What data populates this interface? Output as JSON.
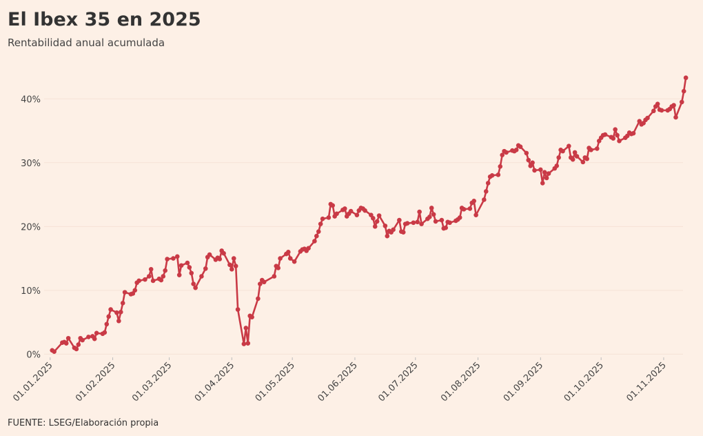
{
  "chart_data": {
    "type": "line",
    "title": "El Ibex 35 en 2025",
    "subtitle": "Rentabilidad anual acumulada",
    "source": "FUENTE: LSEG/Elaboración propia",
    "xlim": [
      "2024-12-29",
      "2025-11-14"
    ],
    "xticks": [
      {
        "value": "2025-01-01",
        "label": "01.01.2025"
      },
      {
        "value": "2025-02-01",
        "label": "01.02.2025"
      },
      {
        "value": "2025-03-01",
        "label": "01.03.2025"
      },
      {
        "value": "2025-04-01",
        "label": "01.04.2025"
      },
      {
        "value": "2025-05-01",
        "label": "01.05.2025"
      },
      {
        "value": "2025-06-01",
        "label": "01.06.2025"
      },
      {
        "value": "2025-07-01",
        "label": "01.07.2025"
      },
      {
        "value": "2025-08-01",
        "label": "01.08.2025"
      },
      {
        "value": "2025-09-01",
        "label": "01.09.2025"
      },
      {
        "value": "2025-10-01",
        "label": "01.10.2025"
      },
      {
        "value": "2025-11-01",
        "label": "01.11.2025"
      }
    ],
    "ylim": [
      -0.5,
      45
    ],
    "yticks": [
      {
        "value": 0,
        "label": "0%"
      },
      {
        "value": 10,
        "label": "10%"
      },
      {
        "value": 20,
        "label": "20%"
      },
      {
        "value": 30,
        "label": "30%"
      },
      {
        "value": 40,
        "label": "40%"
      }
    ],
    "grid": true,
    "x": [
      "2025-01-02",
      "2025-01-03",
      "2025-01-07",
      "2025-01-08",
      "2025-01-09",
      "2025-01-10",
      "2025-01-13",
      "2025-01-14",
      "2025-01-15",
      "2025-01-16",
      "2025-01-17",
      "2025-01-20",
      "2025-01-22",
      "2025-01-23",
      "2025-01-24",
      "2025-01-27",
      "2025-01-28",
      "2025-01-29",
      "2025-01-30",
      "2025-01-31",
      "2025-02-03",
      "2025-02-04",
      "2025-02-05",
      "2025-02-06",
      "2025-02-07",
      "2025-02-10",
      "2025-02-11",
      "2025-02-12",
      "2025-02-13",
      "2025-02-14",
      "2025-02-17",
      "2025-02-19",
      "2025-02-20",
      "2025-02-21",
      "2025-02-24",
      "2025-02-25",
      "2025-02-26",
      "2025-02-27",
      "2025-02-28",
      "2025-03-03",
      "2025-03-05",
      "2025-03-06",
      "2025-03-07",
      "2025-03-10",
      "2025-03-11",
      "2025-03-12",
      "2025-03-13",
      "2025-03-14",
      "2025-03-17",
      "2025-03-19",
      "2025-03-20",
      "2025-03-21",
      "2025-03-24",
      "2025-03-25",
      "2025-03-26",
      "2025-03-27",
      "2025-03-28",
      "2025-03-31",
      "2025-04-01",
      "2025-04-02",
      "2025-04-03",
      "2025-04-04",
      "2025-04-07",
      "2025-04-08",
      "2025-04-09",
      "2025-04-10",
      "2025-04-11",
      "2025-04-14",
      "2025-04-15",
      "2025-04-16",
      "2025-04-17",
      "2025-04-22",
      "2025-04-23",
      "2025-04-24",
      "2025-04-25",
      "2025-04-28",
      "2025-04-29",
      "2025-04-30",
      "2025-05-02",
      "2025-05-05",
      "2025-05-06",
      "2025-05-07",
      "2025-05-08",
      "2025-05-09",
      "2025-05-12",
      "2025-05-13",
      "2025-05-14",
      "2025-05-15",
      "2025-05-16",
      "2025-05-19",
      "2025-05-20",
      "2025-05-21",
      "2025-05-22",
      "2025-05-23",
      "2025-05-26",
      "2025-05-27",
      "2025-05-28",
      "2025-05-29",
      "2025-05-30",
      "2025-06-02",
      "2025-06-03",
      "2025-06-04",
      "2025-06-05",
      "2025-06-06",
      "2025-06-09",
      "2025-06-10",
      "2025-06-11",
      "2025-06-12",
      "2025-06-13",
      "2025-06-16",
      "2025-06-17",
      "2025-06-18",
      "2025-06-19",
      "2025-06-20",
      "2025-06-23",
      "2025-06-24",
      "2025-06-25",
      "2025-06-26",
      "2025-06-27",
      "2025-06-30",
      "2025-07-02",
      "2025-07-03",
      "2025-07-04",
      "2025-07-07",
      "2025-07-08",
      "2025-07-09",
      "2025-07-10",
      "2025-07-11",
      "2025-07-14",
      "2025-07-15",
      "2025-07-16",
      "2025-07-17",
      "2025-07-18",
      "2025-07-21",
      "2025-07-22",
      "2025-07-23",
      "2025-07-24",
      "2025-07-25",
      "2025-07-28",
      "2025-07-29",
      "2025-07-30",
      "2025-07-31",
      "2025-08-04",
      "2025-08-05",
      "2025-08-06",
      "2025-08-07",
      "2025-08-08",
      "2025-08-11",
      "2025-08-12",
      "2025-08-13",
      "2025-08-14",
      "2025-08-15",
      "2025-08-18",
      "2025-08-19",
      "2025-08-20",
      "2025-08-21",
      "2025-08-22",
      "2025-08-25",
      "2025-08-26",
      "2025-08-27",
      "2025-08-28",
      "2025-08-29",
      "2025-09-01",
      "2025-09-02",
      "2025-09-03",
      "2025-09-04",
      "2025-09-05",
      "2025-09-08",
      "2025-09-09",
      "2025-09-10",
      "2025-09-11",
      "2025-09-12",
      "2025-09-15",
      "2025-09-16",
      "2025-09-17",
      "2025-09-18",
      "2025-09-19",
      "2025-09-22",
      "2025-09-23",
      "2025-09-24",
      "2025-09-25",
      "2025-09-26",
      "2025-09-29",
      "2025-09-30",
      "2025-10-01",
      "2025-10-02",
      "2025-10-03",
      "2025-10-06",
      "2025-10-07",
      "2025-10-08",
      "2025-10-09",
      "2025-10-10",
      "2025-10-13",
      "2025-10-14",
      "2025-10-15",
      "2025-10-16",
      "2025-10-17",
      "2025-10-20",
      "2025-10-21",
      "2025-10-22",
      "2025-10-23",
      "2025-10-24",
      "2025-10-27",
      "2025-10-28",
      "2025-10-29",
      "2025-10-30",
      "2025-10-31",
      "2025-11-03",
      "2025-11-04",
      "2025-11-05",
      "2025-11-06",
      "2025-11-07",
      "2025-11-10",
      "2025-11-11",
      "2025-11-12"
    ],
    "series": [
      {
        "color": "#c93a46",
        "values": [
          0.6,
          0.4,
          1.8,
          1.9,
          1.7,
          2.5,
          1.0,
          0.8,
          1.5,
          2.5,
          2.2,
          2.7,
          2.8,
          2.4,
          3.3,
          3.2,
          3.4,
          4.7,
          5.9,
          7.0,
          6.5,
          5.2,
          6.6,
          8.0,
          9.7,
          9.4,
          9.5,
          10.0,
          11.2,
          11.5,
          11.7,
          12.2,
          13.3,
          11.5,
          11.8,
          11.6,
          12.2,
          13.1,
          14.9,
          15.0,
          15.3,
          12.4,
          13.9,
          14.3,
          13.6,
          12.7,
          11.0,
          10.4,
          12.2,
          13.4,
          15.2,
          15.6,
          14.8,
          15.1,
          14.9,
          16.2,
          15.8,
          14.0,
          13.3,
          15.0,
          13.8,
          7.0,
          1.6,
          4.1,
          1.7,
          6.0,
          5.8,
          8.7,
          11.0,
          11.6,
          11.3,
          12.2,
          13.8,
          13.5,
          15.0,
          15.7,
          16.0,
          15.0,
          14.5,
          16.1,
          16.4,
          16.5,
          16.2,
          16.6,
          17.7,
          18.5,
          19.2,
          20.4,
          21.2,
          21.4,
          23.5,
          23.3,
          21.6,
          22.0,
          22.6,
          22.8,
          21.6,
          22.0,
          22.4,
          21.8,
          22.5,
          22.9,
          22.8,
          22.5,
          21.8,
          21.3,
          20.0,
          20.8,
          21.7,
          20.1,
          18.5,
          19.3,
          19.1,
          19.5,
          21.0,
          19.2,
          19.1,
          20.4,
          20.5,
          20.6,
          20.7,
          22.3,
          20.4,
          21.2,
          21.5,
          22.9,
          21.9,
          20.8,
          21.0,
          19.7,
          19.8,
          20.7,
          20.6,
          20.9,
          21.1,
          21.4,
          22.9,
          22.7,
          22.8,
          23.7,
          24.0,
          21.8,
          24.2,
          25.5,
          26.8,
          27.8,
          28.0,
          28.1,
          29.4,
          31.2,
          31.8,
          31.6,
          31.9,
          31.8,
          32.0,
          32.7,
          32.5,
          31.5,
          30.4,
          29.5,
          30.0,
          28.8,
          28.9,
          26.8,
          28.5,
          27.6,
          28.3,
          29.1,
          29.5,
          30.8,
          32.0,
          31.8,
          32.6,
          30.8,
          30.5,
          31.6,
          31.0,
          30.1,
          30.8,
          30.6,
          32.3,
          32.0,
          32.2,
          33.4,
          33.9,
          34.3,
          34.4,
          34.0,
          33.8,
          35.2,
          34.3,
          33.4,
          33.9,
          34.2,
          34.7,
          34.5,
          34.6,
          36.5,
          36.0,
          36.2,
          36.7,
          37.0,
          38.1,
          38.8,
          39.2,
          38.3,
          38.2,
          38.2,
          38.4,
          38.8,
          39.0,
          37.1,
          39.5,
          41.2,
          43.3
        ]
      }
    ]
  }
}
